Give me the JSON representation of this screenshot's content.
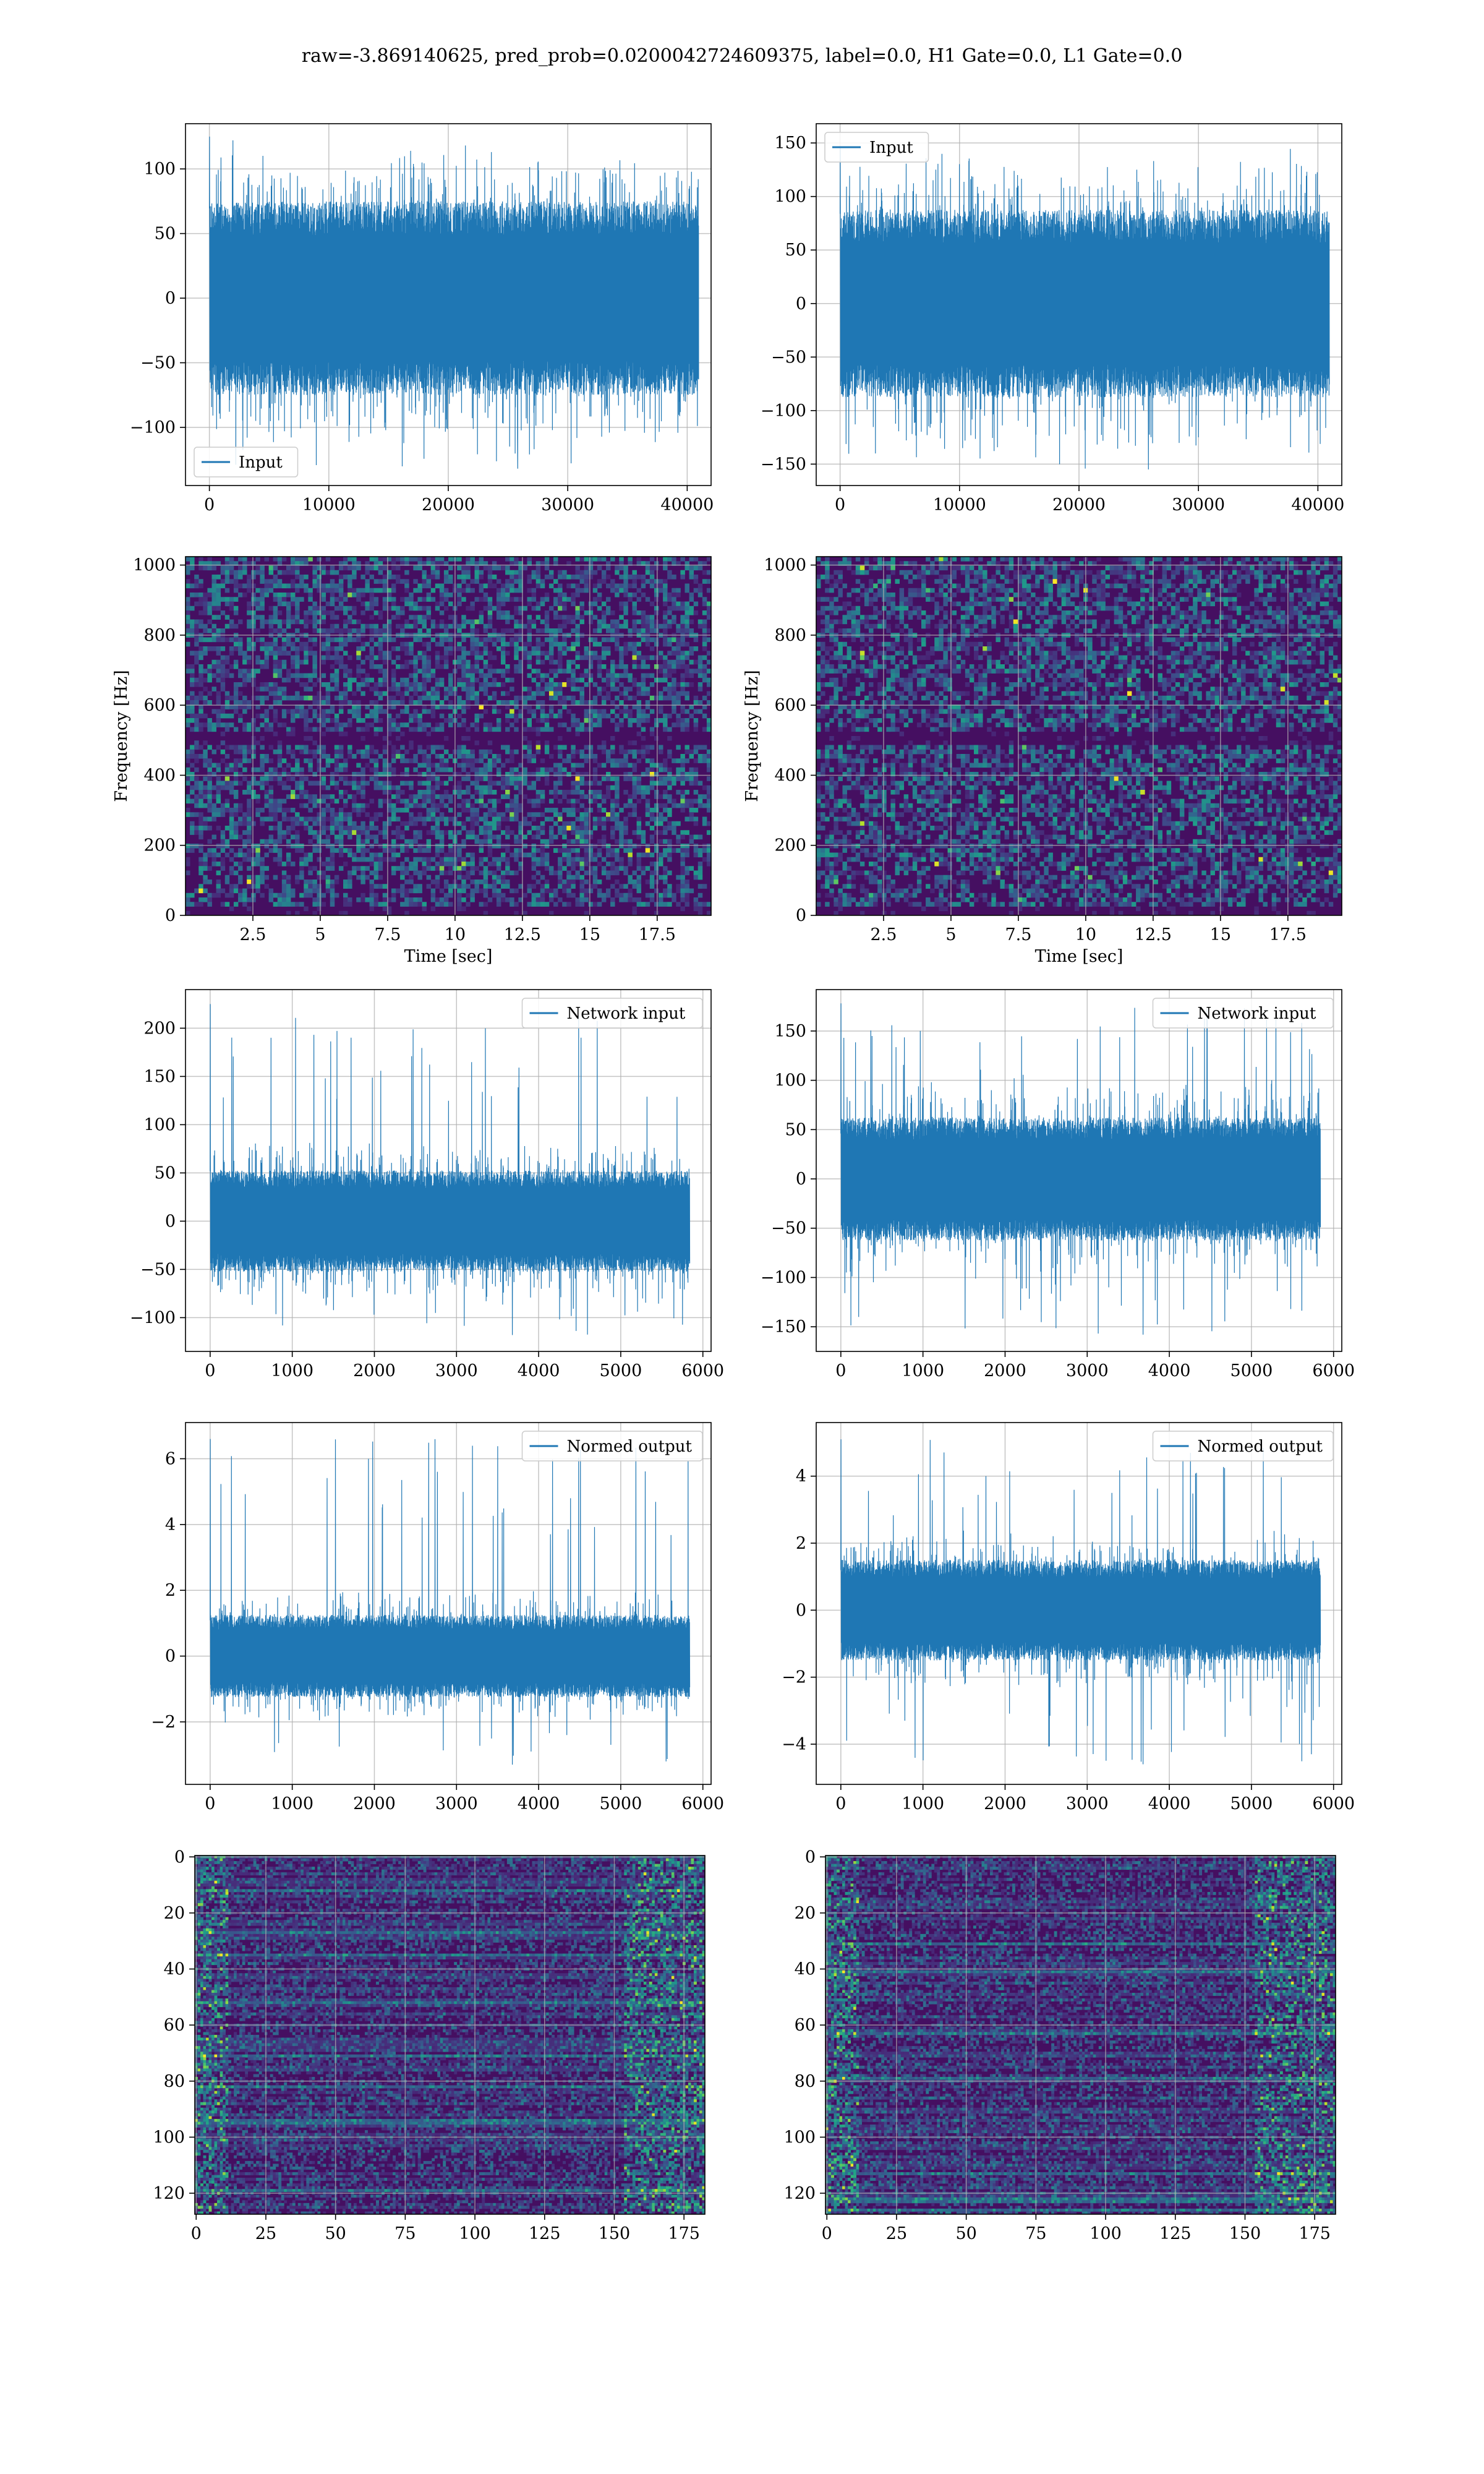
{
  "title": "raw=-3.869140625, pred_prob=0.0200042724609375, label=0.0, H1 Gate=0.0, L1 Gate=0.0",
  "colors": {
    "line": "#1f77b4",
    "grid": "#b0b0b0",
    "axes": "#000000"
  },
  "chart_data": [
    {
      "id": "input-h1",
      "type": "line",
      "series": [
        {
          "name": "Input"
        }
      ],
      "legend": "lower-left",
      "xlim": [
        -2000,
        42000
      ],
      "ylim": [
        -145,
        135
      ],
      "xticks": [
        0,
        10000,
        20000,
        30000,
        40000
      ],
      "yticks": [
        -100,
        -50,
        0,
        50,
        100
      ],
      "n_samples": 40960,
      "envelope": {
        "core": 60,
        "max": 125,
        "min": -132
      },
      "xlabel": "",
      "ylabel": "",
      "grid": true
    },
    {
      "id": "input-l1",
      "type": "line",
      "series": [
        {
          "name": "Input"
        }
      ],
      "legend": "upper-left",
      "xlim": [
        -2000,
        42000
      ],
      "ylim": [
        -170,
        168
      ],
      "xticks": [
        0,
        10000,
        20000,
        30000,
        40000
      ],
      "yticks": [
        -150,
        -100,
        -50,
        0,
        50,
        100,
        150
      ],
      "n_samples": 40960,
      "envelope": {
        "core": 70,
        "max": 145,
        "min": -155
      },
      "xlabel": "",
      "ylabel": "",
      "grid": true
    },
    {
      "id": "spectrogram-h1",
      "type": "heatmap",
      "colormap": "viridis",
      "xlim": [
        0,
        19.5
      ],
      "ylim": [
        0,
        1024
      ],
      "xticks": [
        2.5,
        5.0,
        7.5,
        10.0,
        12.5,
        15.0,
        17.5
      ],
      "yticks": [
        0,
        200,
        400,
        600,
        800,
        1000
      ],
      "xlabel": "Time [sec]",
      "ylabel": "Frequency [Hz]",
      "grid": true
    },
    {
      "id": "spectrogram-l1",
      "type": "heatmap",
      "colormap": "viridis",
      "xlim": [
        0,
        19.5
      ],
      "ylim": [
        0,
        1024
      ],
      "xticks": [
        2.5,
        5.0,
        7.5,
        10.0,
        12.5,
        15.0,
        17.5
      ],
      "yticks": [
        0,
        200,
        400,
        600,
        800,
        1000
      ],
      "xlabel": "Time [sec]",
      "ylabel": "Frequency [Hz]",
      "grid": true
    },
    {
      "id": "network-input-h1",
      "type": "line",
      "series": [
        {
          "name": "Network input"
        }
      ],
      "legend": "upper-right",
      "xlim": [
        -300,
        6100
      ],
      "ylim": [
        -135,
        240
      ],
      "xticks": [
        0,
        1000,
        2000,
        3000,
        4000,
        5000,
        6000
      ],
      "yticks": [
        -100,
        -50,
        0,
        50,
        100,
        150,
        200
      ],
      "n_samples": 5840,
      "envelope": {
        "core": 42,
        "max": 225,
        "min": -118
      },
      "xlabel": "",
      "ylabel": "",
      "grid": true
    },
    {
      "id": "network-input-l1",
      "type": "line",
      "series": [
        {
          "name": "Network input"
        }
      ],
      "legend": "upper-right",
      "xlim": [
        -300,
        6100
      ],
      "ylim": [
        -175,
        192
      ],
      "xticks": [
        0,
        1000,
        2000,
        3000,
        4000,
        5000,
        6000
      ],
      "yticks": [
        -150,
        -100,
        -50,
        0,
        50,
        100,
        150
      ],
      "n_samples": 5840,
      "envelope": {
        "core": 50,
        "max": 178,
        "min": -158
      },
      "xlabel": "",
      "ylabel": "",
      "grid": true
    },
    {
      "id": "normed-output-h1",
      "type": "line",
      "series": [
        {
          "name": "Normed output"
        }
      ],
      "legend": "upper-right",
      "xlim": [
        -300,
        6100
      ],
      "ylim": [
        -3.9,
        7.1
      ],
      "xticks": [
        0,
        1000,
        2000,
        3000,
        4000,
        5000,
        6000
      ],
      "yticks": [
        -2,
        0,
        2,
        4,
        6
      ],
      "n_samples": 5840,
      "envelope": {
        "core": 1.0,
        "max": 6.6,
        "min": -3.3
      },
      "xlabel": "",
      "ylabel": "",
      "grid": true
    },
    {
      "id": "normed-output-l1",
      "type": "line",
      "series": [
        {
          "name": "Normed output"
        }
      ],
      "legend": "upper-right",
      "xlim": [
        -300,
        6100
      ],
      "ylim": [
        -5.2,
        5.6
      ],
      "xticks": [
        0,
        1000,
        2000,
        3000,
        4000,
        5000,
        6000
      ],
      "yticks": [
        -4,
        -2,
        0,
        2,
        4
      ],
      "n_samples": 5840,
      "envelope": {
        "core": 1.2,
        "max": 5.1,
        "min": -4.6
      },
      "xlabel": "",
      "ylabel": "",
      "grid": true
    },
    {
      "id": "feature-map-h1",
      "type": "heatmap",
      "colormap": "viridis",
      "xlim": [
        -0.5,
        182.5
      ],
      "ylim": [
        127.5,
        -0.5
      ],
      "xticks": [
        0,
        25,
        50,
        75,
        100,
        125,
        150,
        175
      ],
      "yticks": [
        0,
        20,
        40,
        60,
        80,
        100,
        120
      ],
      "rows": 128,
      "cols": 183,
      "xlabel": "",
      "ylabel": "",
      "grid": true
    },
    {
      "id": "feature-map-l1",
      "type": "heatmap",
      "colormap": "viridis",
      "xlim": [
        -0.5,
        182.5
      ],
      "ylim": [
        127.5,
        -0.5
      ],
      "xticks": [
        0,
        25,
        50,
        75,
        100,
        125,
        150,
        175
      ],
      "yticks": [
        0,
        20,
        40,
        60,
        80,
        100,
        120
      ],
      "rows": 128,
      "cols": 183,
      "xlabel": "",
      "ylabel": "",
      "grid": true
    }
  ]
}
